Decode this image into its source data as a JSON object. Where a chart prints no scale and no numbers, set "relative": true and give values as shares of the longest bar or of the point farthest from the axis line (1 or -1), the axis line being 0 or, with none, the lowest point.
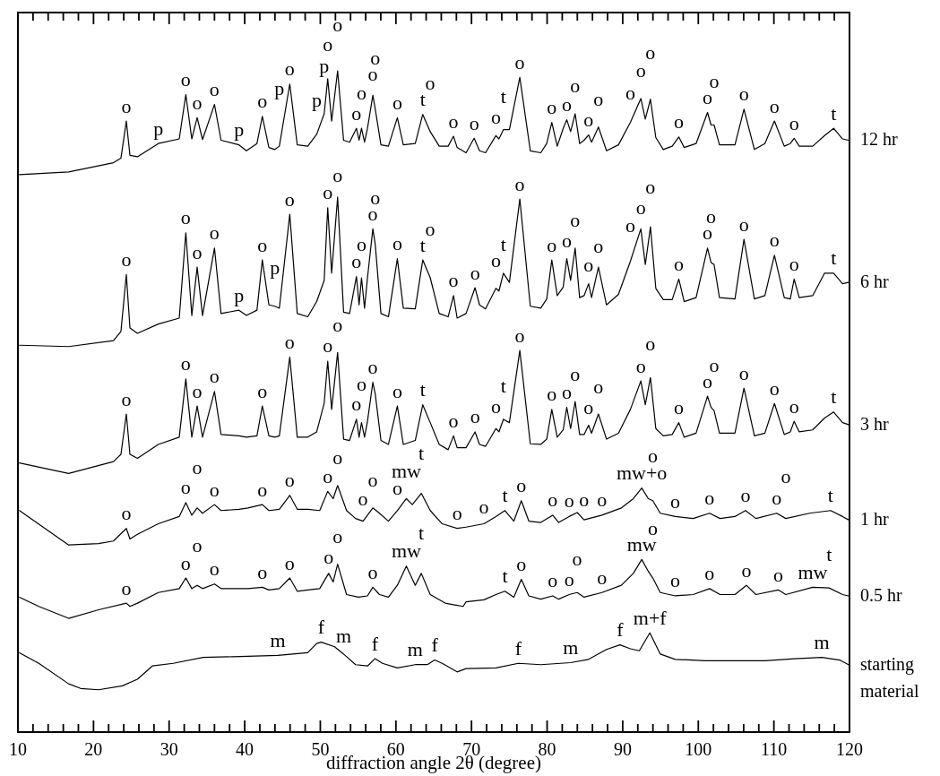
{
  "chart_data": {
    "type": "line",
    "relative": true,
    "xlabel": "diffraction angle 2θ (degree)",
    "xlim": [
      10,
      120
    ],
    "xticks": [
      10,
      {
        "value": 12,
        "label": null
      },
      {
        "value": 14,
        "label": null
      },
      {
        "value": 16,
        "label": null
      },
      {
        "value": 18,
        "label": null
      },
      20,
      {
        "value": 22,
        "label": null
      },
      {
        "value": 24,
        "label": null
      },
      {
        "value": 26,
        "label": null
      },
      {
        "value": 28,
        "label": null
      },
      30,
      {
        "value": 32,
        "label": null
      },
      {
        "value": 34,
        "label": null
      },
      {
        "value": 36,
        "label": null
      },
      {
        "value": 38,
        "label": null
      },
      40,
      {
        "value": 42,
        "label": null
      },
      {
        "value": 44,
        "label": null
      },
      {
        "value": 46,
        "label": null
      },
      {
        "value": 48,
        "label": null
      },
      50,
      {
        "value": 52,
        "label": null
      },
      {
        "value": 54,
        "label": null
      },
      {
        "value": 56,
        "label": null
      },
      {
        "value": 58,
        "label": null
      },
      60,
      {
        "value": 62,
        "label": null
      },
      {
        "value": 64,
        "label": null
      },
      {
        "value": 66,
        "label": null
      },
      {
        "value": 68,
        "label": null
      },
      70,
      {
        "value": 72,
        "label": null
      },
      {
        "value": 74,
        "label": null
      },
      {
        "value": 76,
        "label": null
      },
      {
        "value": 78,
        "label": null
      },
      80,
      {
        "value": 82,
        "label": null
      },
      {
        "value": 84,
        "label": null
      },
      {
        "value": 86,
        "label": null
      },
      {
        "value": 88,
        "label": null
      },
      90,
      {
        "value": 92,
        "label": null
      },
      {
        "value": 94,
        "label": null
      },
      {
        "value": 96,
        "label": null
      },
      {
        "value": 98,
        "label": null
      },
      100,
      {
        "value": 102,
        "label": null
      },
      {
        "value": 104,
        "label": null
      },
      {
        "value": 106,
        "label": null
      },
      {
        "value": 108,
        "label": null
      },
      110,
      {
        "value": 112,
        "label": null
      },
      {
        "value": 114,
        "label": null
      },
      {
        "value": 116,
        "label": null
      },
      {
        "value": 118,
        "label": null
      },
      120
    ],
    "series": [
      {
        "name": "12 hr",
        "color": "#000000",
        "x": [
          10.2,
          16.71,
          22.64,
          23.63,
          24.34,
          24.82,
          25.81,
          28.57,
          31.34,
          32.21,
          33.0,
          33.71,
          34.42,
          36.0,
          36.87,
          39.24,
          40.23,
          41.62,
          42.33,
          43.2,
          43.99,
          44.58,
          45.96,
          46.95,
          48.34,
          49.52,
          50.51,
          50.98,
          51.5,
          52.29,
          53.08,
          53.87,
          54.78,
          55.13,
          55.45,
          55.85,
          56.24,
          56.95,
          57.27,
          58.02,
          59.01,
          60.19,
          60.98,
          62.56,
          63.55,
          64.54,
          65.73,
          66.91,
          67.62,
          68.1,
          69.28,
          70.35,
          71.06,
          71.85,
          73.23,
          73.63,
          74.22,
          75.01,
          76.39,
          77.78,
          79.16,
          79.95,
          80.62,
          81.34,
          82.13,
          82.6,
          83.11,
          83.71,
          84.3,
          84.89,
          85.49,
          85.88,
          86.79,
          87.86,
          89.44,
          91.02,
          92.4,
          92.99,
          93.67,
          94.38,
          95.37,
          96.55,
          97.42,
          98.13,
          99.71,
          101.22,
          101.69,
          102.09,
          102.8,
          104.85,
          106.04,
          107.42,
          108.81,
          110.07,
          111.37,
          112.17,
          112.68,
          113.35,
          115.13,
          116.71,
          117.9,
          119.08,
          119.87
        ],
        "values": [
          0.843,
          0.847,
          0.861,
          0.868,
          0.924,
          0.872,
          0.87,
          0.89,
          0.897,
          0.964,
          0.897,
          0.929,
          0.896,
          0.949,
          0.895,
          0.888,
          0.879,
          0.89,
          0.931,
          0.884,
          0.881,
          0.886,
          0.98,
          0.888,
          0.886,
          0.904,
          0.935,
          0.988,
          0.924,
          1.0,
          0.895,
          0.892,
          0.913,
          0.895,
          0.913,
          0.892,
          0.913,
          0.963,
          0.942,
          0.888,
          0.886,
          0.929,
          0.888,
          0.89,
          0.934,
          0.908,
          0.886,
          0.886,
          0.901,
          0.884,
          0.876,
          0.898,
          0.879,
          0.876,
          0.902,
          0.897,
          0.911,
          0.911,
          0.99,
          0.879,
          0.876,
          0.89,
          0.922,
          0.886,
          0.913,
          0.926,
          0.908,
          0.935,
          0.89,
          0.895,
          0.903,
          0.892,
          0.915,
          0.879,
          0.888,
          0.922,
          0.958,
          0.927,
          0.957,
          0.899,
          0.881,
          0.886,
          0.9,
          0.884,
          0.89,
          0.937,
          0.918,
          0.918,
          0.888,
          0.888,
          0.942,
          0.881,
          0.89,
          0.924,
          0.886,
          0.89,
          0.898,
          0.886,
          0.886,
          0.902,
          0.913,
          0.897,
          0.895
        ]
      },
      {
        "name": "6 hr",
        "color": "#000000",
        "x": [
          10.2,
          16.71,
          22.64,
          23.63,
          24.34,
          24.82,
          25.81,
          28.57,
          31.34,
          32.21,
          33.0,
          33.71,
          34.42,
          36.0,
          36.87,
          39.24,
          40.23,
          41.62,
          42.33,
          43.2,
          43.99,
          44.58,
          45.96,
          46.95,
          48.34,
          49.52,
          50.51,
          50.98,
          51.5,
          52.29,
          53.08,
          53.87,
          54.78,
          55.13,
          55.45,
          55.85,
          56.24,
          56.95,
          57.27,
          58.02,
          59.01,
          60.19,
          60.98,
          62.56,
          63.55,
          64.54,
          65.73,
          66.91,
          67.62,
          68.1,
          69.28,
          70.47,
          71.06,
          71.85,
          73.23,
          73.63,
          74.22,
          75.01,
          76.39,
          77.78,
          79.16,
          79.95,
          80.62,
          81.34,
          82.13,
          82.6,
          83.11,
          83.71,
          84.3,
          84.89,
          85.49,
          85.88,
          86.79,
          87.86,
          89.44,
          91.02,
          92.4,
          92.99,
          93.67,
          94.38,
          95.37,
          96.55,
          97.42,
          98.13,
          99.71,
          101.22,
          101.69,
          102.09,
          102.8,
          104.85,
          106.04,
          107.42,
          108.81,
          110.07,
          111.37,
          112.17,
          112.68,
          113.35,
          115.13,
          116.71,
          117.9,
          119.08,
          119.87
        ],
        "values": [
          0.585,
          0.583,
          0.592,
          0.606,
          0.692,
          0.611,
          0.603,
          0.617,
          0.626,
          0.755,
          0.63,
          0.703,
          0.63,
          0.732,
          0.633,
          0.638,
          0.63,
          0.638,
          0.714,
          0.646,
          0.644,
          0.641,
          0.783,
          0.633,
          0.628,
          0.651,
          0.683,
          0.793,
          0.694,
          0.809,
          0.635,
          0.633,
          0.689,
          0.646,
          0.687,
          0.641,
          0.687,
          0.761,
          0.737,
          0.633,
          0.628,
          0.716,
          0.641,
          0.64,
          0.714,
          0.687,
          0.633,
          0.628,
          0.66,
          0.626,
          0.633,
          0.672,
          0.646,
          0.64,
          0.671,
          0.667,
          0.694,
          0.68,
          0.806,
          0.644,
          0.641,
          0.655,
          0.714,
          0.66,
          0.673,
          0.716,
          0.683,
          0.732,
          0.657,
          0.66,
          0.678,
          0.657,
          0.703,
          0.646,
          0.662,
          0.712,
          0.761,
          0.707,
          0.764,
          0.671,
          0.654,
          0.654,
          0.685,
          0.651,
          0.657,
          0.732,
          0.71,
          0.707,
          0.657,
          0.655,
          0.745,
          0.655,
          0.66,
          0.721,
          0.657,
          0.655,
          0.685,
          0.657,
          0.66,
          0.694,
          0.694,
          0.678,
          0.68
        ]
      },
      {
        "name": "3 hr",
        "color": "#000000",
        "x": [
          10.2,
          16.71,
          22.64,
          23.63,
          24.34,
          24.82,
          25.81,
          28.57,
          31.34,
          32.21,
          33.0,
          33.71,
          34.42,
          36.0,
          36.87,
          39.24,
          40.23,
          41.62,
          42.33,
          43.2,
          43.99,
          44.58,
          45.96,
          46.95,
          48.34,
          49.52,
          50.51,
          50.98,
          51.5,
          52.29,
          53.08,
          53.87,
          54.78,
          55.13,
          55.45,
          55.85,
          56.24,
          56.95,
          57.27,
          58.02,
          59.01,
          60.19,
          60.98,
          62.56,
          63.55,
          64.54,
          65.73,
          66.91,
          67.62,
          68.1,
          69.28,
          70.47,
          71.06,
          71.85,
          73.23,
          73.63,
          74.22,
          75.01,
          76.39,
          77.78,
          79.16,
          79.95,
          80.62,
          81.34,
          82.13,
          82.6,
          83.11,
          83.71,
          84.3,
          84.89,
          85.49,
          85.88,
          86.79,
          87.86,
          89.44,
          91.02,
          92.4,
          92.99,
          93.67,
          94.38,
          95.37,
          96.55,
          97.42,
          98.13,
          99.71,
          101.22,
          101.69,
          102.09,
          102.8,
          104.85,
          106.04,
          107.42,
          108.81,
          110.07,
          111.37,
          112.17,
          112.68,
          113.35,
          115.13,
          116.71,
          117.9,
          119.08,
          119.87
        ],
        "values": [
          0.407,
          0.391,
          0.409,
          0.42,
          0.481,
          0.42,
          0.414,
          0.435,
          0.446,
          0.534,
          0.446,
          0.493,
          0.446,
          0.515,
          0.45,
          0.448,
          0.446,
          0.448,
          0.493,
          0.448,
          0.446,
          0.448,
          0.567,
          0.446,
          0.446,
          0.454,
          0.497,
          0.561,
          0.488,
          0.574,
          0.443,
          0.441,
          0.473,
          0.446,
          0.468,
          0.446,
          0.47,
          0.529,
          0.511,
          0.441,
          0.435,
          0.493,
          0.435,
          0.441,
          0.495,
          0.468,
          0.435,
          0.427,
          0.448,
          0.43,
          0.43,
          0.454,
          0.435,
          0.432,
          0.459,
          0.454,
          0.473,
          0.468,
          0.577,
          0.436,
          0.435,
          0.443,
          0.488,
          0.446,
          0.457,
          0.491,
          0.459,
          0.5,
          0.45,
          0.45,
          0.464,
          0.452,
          0.481,
          0.443,
          0.452,
          0.488,
          0.531,
          0.495,
          0.536,
          0.459,
          0.448,
          0.45,
          0.468,
          0.446,
          0.452,
          0.508,
          0.491,
          0.486,
          0.452,
          0.452,
          0.52,
          0.448,
          0.452,
          0.497,
          0.45,
          0.454,
          0.47,
          0.454,
          0.457,
          0.475,
          0.484,
          0.468,
          0.465
        ]
      },
      {
        "name": "1 hr",
        "color": "#000000",
        "x": [
          10.2,
          16.71,
          20.67,
          22.64,
          24.34,
          24.82,
          25.81,
          28.57,
          31.34,
          32.21,
          33.0,
          33.71,
          34.42,
          36.0,
          36.87,
          39.24,
          40.43,
          42.33,
          43.2,
          44.58,
          45.96,
          46.95,
          48.34,
          49.92,
          50.98,
          51.7,
          52.29,
          53.47,
          54.66,
          55.65,
          56.95,
          57.82,
          59.01,
          60.19,
          61.38,
          62.17,
          63.36,
          64.54,
          66.12,
          68.1,
          69.28,
          71.65,
          73.23,
          74.42,
          75.6,
          76.59,
          77.58,
          79.16,
          80.74,
          81.53,
          82.92,
          83.98,
          84.89,
          87.26,
          89.83,
          91.41,
          92.52,
          93.39,
          93.98,
          94.97,
          96.95,
          99.32,
          101.49,
          102.88,
          104.85,
          106.24,
          107.62,
          110.38,
          111.57,
          114.73,
          117.5,
          119.08,
          119.87
        ],
        "values": [
          0.335,
          0.283,
          0.285,
          0.289,
          0.308,
          0.292,
          0.299,
          0.315,
          0.326,
          0.347,
          0.328,
          0.339,
          0.331,
          0.344,
          0.335,
          0.337,
          0.339,
          0.344,
          0.335,
          0.337,
          0.358,
          0.337,
          0.337,
          0.335,
          0.364,
          0.353,
          0.373,
          0.335,
          0.323,
          0.319,
          0.339,
          0.331,
          0.319,
          0.335,
          0.353,
          0.344,
          0.361,
          0.335,
          0.315,
          0.308,
          0.31,
          0.315,
          0.326,
          0.335,
          0.319,
          0.35,
          0.319,
          0.317,
          0.328,
          0.317,
          0.326,
          0.332,
          0.321,
          0.328,
          0.339,
          0.353,
          0.369,
          0.353,
          0.35,
          0.331,
          0.326,
          0.323,
          0.331,
          0.323,
          0.326,
          0.335,
          0.323,
          0.331,
          0.323,
          0.331,
          0.335,
          0.326,
          0.321
        ]
      },
      {
        "name": "0.5 hr",
        "color": "#000000",
        "x": [
          10.2,
          12.76,
          16.71,
          20.67,
          24.34,
          24.82,
          25.81,
          28.57,
          31.34,
          32.21,
          33.0,
          33.71,
          34.42,
          36.0,
          36.87,
          40.43,
          42.33,
          43.2,
          44.58,
          45.96,
          46.95,
          48.34,
          49.92,
          51.1,
          51.7,
          52.29,
          53.47,
          55.05,
          56.24,
          56.95,
          57.82,
          59.01,
          60.19,
          61.38,
          62.56,
          63.36,
          64.54,
          66.52,
          68.89,
          69.28,
          71.65,
          73.23,
          74.42,
          75.6,
          76.59,
          77.58,
          79.16,
          80.74,
          81.53,
          82.92,
          83.98,
          84.89,
          87.26,
          89.83,
          91.41,
          92.52,
          93.39,
          93.98,
          94.97,
          96.95,
          99.32,
          101.49,
          102.88,
          104.85,
          106.36,
          107.62,
          110.58,
          111.57,
          115.13,
          117.3,
          119.08,
          119.87
        ],
        "values": [
          0.204,
          0.19,
          0.172,
          0.185,
          0.195,
          0.19,
          0.195,
          0.211,
          0.217,
          0.233,
          0.217,
          0.222,
          0.217,
          0.224,
          0.217,
          0.217,
          0.219,
          0.215,
          0.217,
          0.233,
          0.213,
          0.215,
          0.217,
          0.24,
          0.227,
          0.254,
          0.208,
          0.204,
          0.206,
          0.219,
          0.208,
          0.204,
          0.222,
          0.251,
          0.222,
          0.24,
          0.208,
          0.195,
          0.19,
          0.197,
          0.2,
          0.208,
          0.213,
          0.204,
          0.231,
          0.206,
          0.201,
          0.206,
          0.201,
          0.208,
          0.211,
          0.204,
          0.211,
          0.222,
          0.24,
          0.261,
          0.243,
          0.233,
          0.211,
          0.206,
          0.208,
          0.217,
          0.208,
          0.208,
          0.222,
          0.208,
          0.215,
          0.208,
          0.219,
          0.218,
          0.208,
          0.206
        ]
      },
      {
        "name": "starting material",
        "color": "#000000",
        "x": [
          10.2,
          12.76,
          16.71,
          18.3,
          20.67,
          23.83,
          25.81,
          27.78,
          30.55,
          34.5,
          38.45,
          44.38,
          48.34,
          49.52,
          50.11,
          51.89,
          53.08,
          54.66,
          56.24,
          57.23,
          58.22,
          60.19,
          62.56,
          64.15,
          65.13,
          66.12,
          68.1,
          69.28,
          73.23,
          76.2,
          79.16,
          83.11,
          85.49,
          87.86,
          89.64,
          91.02,
          92.2,
          93.59,
          94.97,
          96.95,
          100.9,
          108.81,
          112.76,
          116.32,
          118.69,
          119.87
        ],
        "values": [
          0.12,
          0.104,
          0.073,
          0.066,
          0.064,
          0.07,
          0.08,
          0.1,
          0.104,
          0.113,
          0.114,
          0.116,
          0.12,
          0.134,
          0.136,
          0.129,
          0.118,
          0.102,
          0.1,
          0.111,
          0.104,
          0.097,
          0.102,
          0.102,
          0.109,
          0.104,
          0.091,
          0.096,
          0.097,
          0.104,
          0.102,
          0.105,
          0.11,
          0.125,
          0.132,
          0.126,
          0.123,
          0.15,
          0.118,
          0.11,
          0.108,
          0.108,
          0.111,
          0.113,
          0.109,
          0.102
        ]
      }
    ],
    "annotations": [
      {
        "text": "o",
        "x": 24.34,
        "y": 0.924
      },
      {
        "text": "p",
        "x": 28.57,
        "y": 0.89
      },
      {
        "text": "o",
        "x": 32.21,
        "y": 0.964
      },
      {
        "text": "o",
        "x": 33.71,
        "y": 0.929
      },
      {
        "text": "o",
        "x": 36.0,
        "y": 0.949
      },
      {
        "text": "p",
        "x": 39.24,
        "y": 0.888
      },
      {
        "text": "o",
        "x": 42.33,
        "y": 0.931
      },
      {
        "text": "p",
        "x": 44.58,
        "y": 0.886
      },
      {
        "text": "o",
        "x": 45.96,
        "y": 0.98
      },
      {
        "text": "p",
        "x": 49.52,
        "y": 0.904
      },
      {
        "text": "p",
        "x": 50.51,
        "y": 0.935
      },
      {
        "text": "o",
        "x": 50.98,
        "y": 0.988
      },
      {
        "text": "o",
        "x": 52.29,
        "y": 1.0
      },
      {
        "text": "o",
        "x": 54.78,
        "y": 0.913
      },
      {
        "text": "o",
        "x": 55.45,
        "y": 0.913
      },
      {
        "text": "o",
        "x": 56.95,
        "y": 0.963
      },
      {
        "text": "o",
        "x": 57.27,
        "y": 0.942
      },
      {
        "text": "o",
        "x": 60.19,
        "y": 0.929
      },
      {
        "text": "t",
        "x": 63.55,
        "y": 0.934
      },
      {
        "text": "o",
        "x": 64.54,
        "y": 0.908
      },
      {
        "text": "o",
        "x": 67.62,
        "y": 0.901
      },
      {
        "text": "o",
        "x": 70.35,
        "y": 0.898
      },
      {
        "text": "o",
        "x": 73.23,
        "y": 0.902
      },
      {
        "text": "t",
        "x": 74.22,
        "y": 0.911
      },
      {
        "text": "o",
        "x": 76.39,
        "y": 0.99
      },
      {
        "text": "o",
        "x": 80.62,
        "y": 0.922
      },
      {
        "text": "o",
        "x": 82.6,
        "y": 0.926
      },
      {
        "text": "o",
        "x": 83.71,
        "y": 0.935
      },
      {
        "text": "o",
        "x": 85.49,
        "y": 0.903
      },
      {
        "text": "o",
        "x": 86.79,
        "y": 0.915
      },
      {
        "text": "o",
        "x": 91.02,
        "y": 0.922
      },
      {
        "text": "o",
        "x": 92.4,
        "y": 0.958
      },
      {
        "text": "o",
        "x": 93.67,
        "y": 0.957
      },
      {
        "text": "o",
        "x": 97.42,
        "y": 0.9
      },
      {
        "text": "o",
        "x": 101.22,
        "y": 0.937
      },
      {
        "text": "o",
        "x": 102.09,
        "y": 0.918
      },
      {
        "text": "o",
        "x": 106.04,
        "y": 0.942
      },
      {
        "text": "o",
        "x": 110.07,
        "y": 0.924
      },
      {
        "text": "o",
        "x": 112.68,
        "y": 0.898
      },
      {
        "text": "t",
        "x": 117.9,
        "y": 0.913
      },
      {
        "text": "o",
        "x": 24.34,
        "y": 0.692
      },
      {
        "text": "o",
        "x": 32.21,
        "y": 0.755
      },
      {
        "text": "o",
        "x": 33.71,
        "y": 0.703
      },
      {
        "text": "o",
        "x": 36.0,
        "y": 0.732
      },
      {
        "text": "p",
        "x": 39.24,
        "y": 0.638
      },
      {
        "text": "o",
        "x": 42.33,
        "y": 0.714
      },
      {
        "text": "p",
        "x": 43.99,
        "y": 0.644
      },
      {
        "text": "o",
        "x": 45.96,
        "y": 0.783
      },
      {
        "text": "o",
        "x": 50.98,
        "y": 0.793
      },
      {
        "text": "o",
        "x": 52.29,
        "y": 0.809
      },
      {
        "text": "o",
        "x": 54.78,
        "y": 0.689
      },
      {
        "text": "o",
        "x": 55.45,
        "y": 0.687
      },
      {
        "text": "o",
        "x": 56.95,
        "y": 0.761
      },
      {
        "text": "o",
        "x": 57.27,
        "y": 0.737
      },
      {
        "text": "o",
        "x": 60.19,
        "y": 0.716
      },
      {
        "text": "t",
        "x": 63.55,
        "y": 0.714
      },
      {
        "text": "o",
        "x": 64.54,
        "y": 0.687
      },
      {
        "text": "o",
        "x": 67.62,
        "y": 0.66
      },
      {
        "text": "o",
        "x": 70.47,
        "y": 0.672
      },
      {
        "text": "o",
        "x": 73.23,
        "y": 0.671
      },
      {
        "text": "t",
        "x": 74.22,
        "y": 0.694
      },
      {
        "text": "o",
        "x": 76.39,
        "y": 0.806
      },
      {
        "text": "o",
        "x": 80.62,
        "y": 0.714
      },
      {
        "text": "o",
        "x": 82.6,
        "y": 0.716
      },
      {
        "text": "o",
        "x": 83.71,
        "y": 0.732
      },
      {
        "text": "o",
        "x": 85.49,
        "y": 0.678
      },
      {
        "text": "o",
        "x": 86.79,
        "y": 0.703
      },
      {
        "text": "o",
        "x": 91.02,
        "y": 0.712
      },
      {
        "text": "o",
        "x": 92.4,
        "y": 0.761
      },
      {
        "text": "o",
        "x": 93.67,
        "y": 0.764
      },
      {
        "text": "o",
        "x": 97.42,
        "y": 0.685
      },
      {
        "text": "o",
        "x": 101.22,
        "y": 0.732
      },
      {
        "text": "o",
        "x": 101.69,
        "y": 0.71
      },
      {
        "text": "o",
        "x": 106.04,
        "y": 0.745
      },
      {
        "text": "o",
        "x": 110.07,
        "y": 0.721
      },
      {
        "text": "o",
        "x": 112.68,
        "y": 0.685
      },
      {
        "text": "t",
        "x": 117.9,
        "y": 0.694
      },
      {
        "text": "o",
        "x": 24.34,
        "y": 0.481
      },
      {
        "text": "o",
        "x": 32.21,
        "y": 0.534
      },
      {
        "text": "o",
        "x": 33.71,
        "y": 0.493
      },
      {
        "text": "o",
        "x": 36.0,
        "y": 0.515
      },
      {
        "text": "o",
        "x": 42.33,
        "y": 0.493
      },
      {
        "text": "o",
        "x": 45.96,
        "y": 0.567
      },
      {
        "text": "o",
        "x": 50.98,
        "y": 0.561
      },
      {
        "text": "o",
        "x": 52.29,
        "y": 0.574
      },
      {
        "text": "o",
        "x": 54.78,
        "y": 0.473
      },
      {
        "text": "o",
        "x": 55.45,
        "y": 0.468
      },
      {
        "text": "o",
        "x": 56.95,
        "y": 0.529
      },
      {
        "text": "o",
        "x": 60.19,
        "y": 0.493
      },
      {
        "text": "t",
        "x": 63.55,
        "y": 0.495
      },
      {
        "text": "o",
        "x": 67.62,
        "y": 0.448
      },
      {
        "text": "o",
        "x": 70.47,
        "y": 0.454
      },
      {
        "text": "o",
        "x": 73.23,
        "y": 0.459
      },
      {
        "text": "t",
        "x": 74.22,
        "y": 0.473
      },
      {
        "text": "o",
        "x": 76.39,
        "y": 0.577
      },
      {
        "text": "o",
        "x": 80.62,
        "y": 0.488
      },
      {
        "text": "o",
        "x": 82.6,
        "y": 0.491
      },
      {
        "text": "o",
        "x": 83.71,
        "y": 0.5
      },
      {
        "text": "o",
        "x": 85.49,
        "y": 0.464
      },
      {
        "text": "o",
        "x": 86.79,
        "y": 0.481
      },
      {
        "text": "o",
        "x": 92.4,
        "y": 0.531
      },
      {
        "text": "o",
        "x": 93.67,
        "y": 0.536
      },
      {
        "text": "o",
        "x": 97.42,
        "y": 0.468
      },
      {
        "text": "o",
        "x": 101.22,
        "y": 0.508
      },
      {
        "text": "o",
        "x": 102.09,
        "y": 0.486
      },
      {
        "text": "o",
        "x": 106.04,
        "y": 0.52
      },
      {
        "text": "o",
        "x": 110.07,
        "y": 0.497
      },
      {
        "text": "o",
        "x": 112.68,
        "y": 0.47
      },
      {
        "text": "t",
        "x": 117.9,
        "y": 0.484
      },
      {
        "text": "o",
        "x": 24.34,
        "y": 0.308
      },
      {
        "text": "o",
        "x": 32.21,
        "y": 0.347
      },
      {
        "text": "o",
        "x": 33.71,
        "y": 0.339
      },
      {
        "text": "o",
        "x": 36.0,
        "y": 0.344
      },
      {
        "text": "o",
        "x": 42.33,
        "y": 0.344
      },
      {
        "text": "o",
        "x": 45.96,
        "y": 0.358
      },
      {
        "text": "o",
        "x": 50.98,
        "y": 0.364
      },
      {
        "text": "o",
        "x": 52.29,
        "y": 0.373
      },
      {
        "text": "o",
        "x": 55.65,
        "y": 0.319
      },
      {
        "text": "o",
        "x": 56.95,
        "y": 0.339
      },
      {
        "text": "o",
        "x": 60.19,
        "y": 0.335
      },
      {
        "text": "mw",
        "x": 61.38,
        "y": 0.353
      },
      {
        "text": "t",
        "x": 63.36,
        "y": 0.361
      },
      {
        "text": "o",
        "x": 68.1,
        "y": 0.308
      },
      {
        "text": "o",
        "x": 71.65,
        "y": 0.315
      },
      {
        "text": "t",
        "x": 74.42,
        "y": 0.335
      },
      {
        "text": "o",
        "x": 76.59,
        "y": 0.35
      },
      {
        "text": "o",
        "x": 80.74,
        "y": 0.328
      },
      {
        "text": "o",
        "x": 82.92,
        "y": 0.326
      },
      {
        "text": "o",
        "x": 84.89,
        "y": 0.321
      },
      {
        "text": "o",
        "x": 87.26,
        "y": 0.328
      },
      {
        "text": "mw+o",
        "x": 92.52,
        "y": 0.369
      },
      {
        "text": "o",
        "x": 93.98,
        "y": 0.35
      },
      {
        "text": "o",
        "x": 96.95,
        "y": 0.326
      },
      {
        "text": "o",
        "x": 101.49,
        "y": 0.331
      },
      {
        "text": "o",
        "x": 106.24,
        "y": 0.335
      },
      {
        "text": "o",
        "x": 110.38,
        "y": 0.331
      },
      {
        "text": "o",
        "x": 111.57,
        "y": 0.323
      },
      {
        "text": "t",
        "x": 117.5,
        "y": 0.335
      },
      {
        "text": "o",
        "x": 24.34,
        "y": 0.195
      },
      {
        "text": "o",
        "x": 32.21,
        "y": 0.233
      },
      {
        "text": "o",
        "x": 33.71,
        "y": 0.222
      },
      {
        "text": "o",
        "x": 36.0,
        "y": 0.224
      },
      {
        "text": "o",
        "x": 42.33,
        "y": 0.219
      },
      {
        "text": "o",
        "x": 45.96,
        "y": 0.233
      },
      {
        "text": "o",
        "x": 51.1,
        "y": 0.24
      },
      {
        "text": "o",
        "x": 52.29,
        "y": 0.254
      },
      {
        "text": "o",
        "x": 56.95,
        "y": 0.219
      },
      {
        "text": "mw",
        "x": 61.38,
        "y": 0.251
      },
      {
        "text": "t",
        "x": 63.36,
        "y": 0.24
      },
      {
        "text": "t",
        "x": 74.42,
        "y": 0.213
      },
      {
        "text": "o",
        "x": 76.59,
        "y": 0.231
      },
      {
        "text": "o",
        "x": 80.74,
        "y": 0.206
      },
      {
        "text": "o",
        "x": 82.92,
        "y": 0.208
      },
      {
        "text": "o",
        "x": 83.98,
        "y": 0.211
      },
      {
        "text": "o",
        "x": 87.26,
        "y": 0.211
      },
      {
        "text": "mw",
        "x": 92.52,
        "y": 0.261
      },
      {
        "text": "o",
        "x": 93.98,
        "y": 0.233
      },
      {
        "text": "o",
        "x": 96.95,
        "y": 0.206
      },
      {
        "text": "o",
        "x": 101.49,
        "y": 0.217
      },
      {
        "text": "o",
        "x": 106.36,
        "y": 0.222
      },
      {
        "text": "o",
        "x": 110.58,
        "y": 0.215
      },
      {
        "text": "mw",
        "x": 115.13,
        "y": 0.219
      },
      {
        "text": "t",
        "x": 117.3,
        "y": 0.218
      },
      {
        "text": "m",
        "x": 44.38,
        "y": 0.116
      },
      {
        "text": "f",
        "x": 50.11,
        "y": 0.136
      },
      {
        "text": "m",
        "x": 53.08,
        "y": 0.118
      },
      {
        "text": "f",
        "x": 57.23,
        "y": 0.111
      },
      {
        "text": "m",
        "x": 62.56,
        "y": 0.102
      },
      {
        "text": "f",
        "x": 65.13,
        "y": 0.109
      },
      {
        "text": "f",
        "x": 76.2,
        "y": 0.104
      },
      {
        "text": "m",
        "x": 83.11,
        "y": 0.105
      },
      {
        "text": "f",
        "x": 89.64,
        "y": 0.132
      },
      {
        "text": "m+f",
        "x": 93.59,
        "y": 0.15
      },
      {
        "text": "m",
        "x": 116.32,
        "y": 0.113
      }
    ]
  }
}
